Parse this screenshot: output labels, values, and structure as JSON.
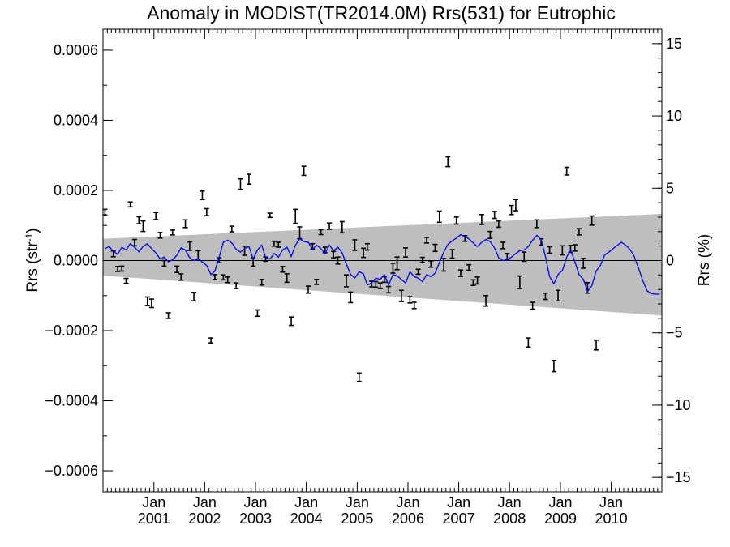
{
  "chart_data": {
    "type": "line",
    "title": "Anomaly in MODIST(TR2014.0M) Rrs(531) for Eutrophic",
    "ylabel_left": {
      "base": "Rrs (str",
      "sup": "-1",
      "close": ")"
    },
    "ylabel_right": "Rrs (%)",
    "xlim": [
      "2000-01-01",
      "2010-12-31"
    ],
    "ylim": [
      -0.00066,
      0.00066
    ],
    "ylim_right": [
      -16.0,
      16.0
    ],
    "yticks": [
      "0.0006",
      "0.0004",
      "0.0002",
      "0.0000",
      "−0.0002",
      "−0.0004",
      "−0.0006"
    ],
    "yticks_right": [
      "15",
      "10",
      "5",
      "0",
      "−5",
      "−10",
      "−15"
    ],
    "xticks": [
      {
        "month": "Jan",
        "year": "2001"
      },
      {
        "month": "Jan",
        "year": "2002"
      },
      {
        "month": "Jan",
        "year": "2003"
      },
      {
        "month": "Jan",
        "year": "2004"
      },
      {
        "month": "Jan",
        "year": "2005"
      },
      {
        "month": "Jan",
        "year": "2006"
      },
      {
        "month": "Jan",
        "year": "2007"
      },
      {
        "month": "Jan",
        "year": "2008"
      },
      {
        "month": "Jan",
        "year": "2009"
      },
      {
        "month": "Jan",
        "year": "2010"
      }
    ],
    "zero_line": true,
    "uncertainty_band": {
      "color": "#bebebe",
      "start": {
        "date": "2000-01-01",
        "upper": 6.2e-05,
        "lower": -4.3e-05
      },
      "end": {
        "date": "2010-12-31",
        "upper": 0.000133,
        "lower": -0.000157
      }
    },
    "error_bars": [
      {
        "date": "2000-01",
        "y": 0.000138,
        "err": 8e-06
      },
      {
        "date": "2000-03",
        "y": 1.9e-05,
        "err": 8e-06
      },
      {
        "date": "2000-04",
        "y": -2.4e-05,
        "err": 7e-06
      },
      {
        "date": "2000-05",
        "y": -2.3e-05,
        "err": 7e-06
      },
      {
        "date": "2000-06",
        "y": -5.8e-05,
        "err": 7e-06
      },
      {
        "date": "2000-07",
        "y": 0.00016,
        "err": 7e-06
      },
      {
        "date": "2000-08",
        "y": 5.1e-05,
        "err": 9e-06
      },
      {
        "date": "2000-09",
        "y": 0.000115,
        "err": 1e-05
      },
      {
        "date": "2000-10",
        "y": 9.8e-05,
        "err": 1.5e-05
      },
      {
        "date": "2000-11",
        "y": -0.000116,
        "err": 1.2e-05
      },
      {
        "date": "2000-12",
        "y": -0.000122,
        "err": 1.2e-05
      },
      {
        "date": "2001-01",
        "y": 0.000127,
        "err": 1e-05
      },
      {
        "date": "2001-02",
        "y": 7.2e-05,
        "err": 8e-06
      },
      {
        "date": "2001-03",
        "y": -8e-06,
        "err": 8e-06
      },
      {
        "date": "2001-04",
        "y": -0.000157,
        "err": 8e-06
      },
      {
        "date": "2001-05",
        "y": 8e-05,
        "err": 7e-06
      },
      {
        "date": "2001-06",
        "y": -2.5e-05,
        "err": 9e-06
      },
      {
        "date": "2001-07",
        "y": -4.7e-05,
        "err": 9e-06
      },
      {
        "date": "2001-08",
        "y": 0.000105,
        "err": 1.1e-05
      },
      {
        "date": "2001-09",
        "y": 4.1e-05,
        "err": 1.2e-05
      },
      {
        "date": "2001-10",
        "y": -0.000103,
        "err": 1.2e-05
      },
      {
        "date": "2001-11",
        "y": 1.6e-05,
        "err": 1.2e-05
      },
      {
        "date": "2001-12",
        "y": 0.000186,
        "err": 1.2e-05
      },
      {
        "date": "2002-01",
        "y": 0.000138,
        "err": 1e-05
      },
      {
        "date": "2002-02",
        "y": -0.000228,
        "err": 7e-06
      },
      {
        "date": "2002-03",
        "y": -4.7e-05,
        "err": 7e-06
      },
      {
        "date": "2002-04",
        "y": 1e-06,
        "err": 7e-06
      },
      {
        "date": "2002-05",
        "y": -4.8e-05,
        "err": 7e-06
      },
      {
        "date": "2002-06",
        "y": -5.5e-05,
        "err": 8e-06
      },
      {
        "date": "2002-07",
        "y": 9e-05,
        "err": 8e-06
      },
      {
        "date": "2002-08",
        "y": -7.2e-05,
        "err": 8e-06
      },
      {
        "date": "2002-09",
        "y": 0.000218,
        "err": 1.5e-05
      },
      {
        "date": "2002-10",
        "y": 2.8e-05,
        "err": 1.3e-05
      },
      {
        "date": "2002-11",
        "y": 0.000232,
        "err": 1.4e-05
      },
      {
        "date": "2002-12",
        "y": -4e-06,
        "err": 1.2e-05
      },
      {
        "date": "2003-01",
        "y": -0.00015,
        "err": 9e-06
      },
      {
        "date": "2003-02",
        "y": -6.2e-05,
        "err": 8e-06
      },
      {
        "date": "2003-03",
        "y": 4e-06,
        "err": 6e-06
      },
      {
        "date": "2003-04",
        "y": 0.000129,
        "err": 6e-06
      },
      {
        "date": "2003-05",
        "y": 4.8e-05,
        "err": 7e-06
      },
      {
        "date": "2003-06",
        "y": 4.5e-05,
        "err": 7e-06
      },
      {
        "date": "2003-07",
        "y": -2.5e-05,
        "err": 8e-06
      },
      {
        "date": "2003-08",
        "y": -5e-05,
        "err": 1.2e-05
      },
      {
        "date": "2003-09",
        "y": -0.000173,
        "err": 1.2e-05
      },
      {
        "date": "2003-10",
        "y": 0.000126,
        "err": 2e-05
      },
      {
        "date": "2003-11",
        "y": 7.9e-05,
        "err": 1.7e-05
      },
      {
        "date": "2003-12",
        "y": 0.000256,
        "err": 1.3e-05
      },
      {
        "date": "2004-01",
        "y": -8.3e-05,
        "err": 1e-05
      },
      {
        "date": "2004-02",
        "y": 4e-05,
        "err": 8e-06
      },
      {
        "date": "2004-03",
        "y": -6.1e-05,
        "err": 7e-06
      },
      {
        "date": "2004-04",
        "y": 8.1e-05,
        "err": 7e-06
      },
      {
        "date": "2004-05",
        "y": 3e-05,
        "err": 8e-06
      },
      {
        "date": "2004-06",
        "y": 9.8e-05,
        "err": 9e-06
      },
      {
        "date": "2004-07",
        "y": 1.7e-05,
        "err": 9e-06
      },
      {
        "date": "2004-08",
        "y": 0.0,
        "err": 1e-05
      },
      {
        "date": "2004-09",
        "y": 9.5e-05,
        "err": 1.6e-05
      },
      {
        "date": "2004-10",
        "y": -5.8e-05,
        "err": 1.7e-05
      },
      {
        "date": "2004-11",
        "y": -0.000105,
        "err": 1.5e-05
      },
      {
        "date": "2004-12",
        "y": 4.4e-05,
        "err": 1.5e-05
      },
      {
        "date": "2005-01",
        "y": -0.000333,
        "err": 1.2e-05
      },
      {
        "date": "2005-02",
        "y": 2.2e-05,
        "err": 1.3e-05
      },
      {
        "date": "2005-03",
        "y": 3.9e-05,
        "err": 9e-06
      },
      {
        "date": "2005-04",
        "y": -6.7e-05,
        "err": 8e-06
      },
      {
        "date": "2005-05",
        "y": -6.8e-05,
        "err": 8e-06
      },
      {
        "date": "2005-06",
        "y": -7.2e-05,
        "err": 8e-06
      },
      {
        "date": "2005-07",
        "y": -5.4e-05,
        "err": 8e-06
      },
      {
        "date": "2005-08",
        "y": -8.3e-05,
        "err": 9e-06
      },
      {
        "date": "2005-09",
        "y": -2.2e-05,
        "err": 1.4e-05
      },
      {
        "date": "2005-10",
        "y": -8e-06,
        "err": 1.8e-05
      },
      {
        "date": "2005-11",
        "y": -0.000101,
        "err": 1.6e-05
      },
      {
        "date": "2005-12",
        "y": 2.3e-05,
        "err": 1.3e-05
      },
      {
        "date": "2006-01",
        "y": -0.000112,
        "err": 9e-06
      },
      {
        "date": "2006-02",
        "y": -0.000128,
        "err": 9e-06
      },
      {
        "date": "2006-03",
        "y": -3.2e-05,
        "err": 7e-06
      },
      {
        "date": "2006-04",
        "y": 2e-06,
        "err": 7e-06
      },
      {
        "date": "2006-05",
        "y": 5.8e-05,
        "err": 8e-06
      },
      {
        "date": "2006-06",
        "y": -1e-05,
        "err": 9e-06
      },
      {
        "date": "2006-07",
        "y": 3.6e-05,
        "err": 1e-05
      },
      {
        "date": "2006-08",
        "y": 0.000125,
        "err": 1.6e-05
      },
      {
        "date": "2006-09",
        "y": -1.2e-05,
        "err": 1.8e-05
      },
      {
        "date": "2006-10",
        "y": 0.000282,
        "err": 1.4e-05
      },
      {
        "date": "2006-11",
        "y": 1.9e-05,
        "err": 1.2e-05
      },
      {
        "date": "2006-12",
        "y": 0.000114,
        "err": 1e-05
      },
      {
        "date": "2007-01",
        "y": -3.6e-05,
        "err": 9e-06
      },
      {
        "date": "2007-02",
        "y": 6.3e-05,
        "err": 8e-06
      },
      {
        "date": "2007-03",
        "y": -2e-05,
        "err": 8e-06
      },
      {
        "date": "2007-04",
        "y": -6.3e-05,
        "err": 8e-06
      },
      {
        "date": "2007-05",
        "y": -5.7e-05,
        "err": 1e-05
      },
      {
        "date": "2007-06",
        "y": 0.000117,
        "err": 1.4e-05
      },
      {
        "date": "2007-07",
        "y": -0.000115,
        "err": 1.5e-05
      },
      {
        "date": "2007-08",
        "y": 7.3e-05,
        "err": 1e-05
      },
      {
        "date": "2007-09",
        "y": 0.00013,
        "err": 1e-05
      },
      {
        "date": "2007-10",
        "y": 0.000104,
        "err": 9e-06
      },
      {
        "date": "2007-11",
        "y": 4.3e-05,
        "err": 9e-06
      },
      {
        "date": "2007-12",
        "y": 1.1e-05,
        "err": 9e-06
      },
      {
        "date": "2008-01",
        "y": 0.000144,
        "err": 1.3e-05
      },
      {
        "date": "2008-02",
        "y": 0.000158,
        "err": 1.6e-05
      },
      {
        "date": "2008-03",
        "y": -6.2e-05,
        "err": 1.8e-05
      },
      {
        "date": "2008-04",
        "y": 1.1e-05,
        "err": 1.3e-05
      },
      {
        "date": "2008-05",
        "y": -0.000234,
        "err": 1.3e-05
      },
      {
        "date": "2008-06",
        "y": -0.000129,
        "err": 1e-05
      },
      {
        "date": "2008-07",
        "y": 0.000105,
        "err": 1.1e-05
      },
      {
        "date": "2008-08",
        "y": 5.3e-05,
        "err": 9e-06
      },
      {
        "date": "2008-09",
        "y": -0.000102,
        "err": 9e-06
      },
      {
        "date": "2008-10",
        "y": 3e-05,
        "err": 9e-06
      },
      {
        "date": "2008-11",
        "y": -0.000301,
        "err": 1.6e-05
      },
      {
        "date": "2008-12",
        "y": -0.0001,
        "err": 1.5e-05
      },
      {
        "date": "2009-01",
        "y": 2.9e-05,
        "err": 1.3e-05
      },
      {
        "date": "2009-02",
        "y": 0.000255,
        "err": 1.1e-05
      },
      {
        "date": "2009-03",
        "y": 3.3e-05,
        "err": 1e-05
      },
      {
        "date": "2009-04",
        "y": 3.6e-05,
        "err": 9e-06
      },
      {
        "date": "2009-05",
        "y": 8.2e-05,
        "err": 9e-06
      },
      {
        "date": "2009-06",
        "y": -8e-06,
        "err": 1.4e-05
      },
      {
        "date": "2009-07",
        "y": -7.8e-05,
        "err": 1.5e-05
      },
      {
        "date": "2009-08",
        "y": 0.000114,
        "err": 1.3e-05
      },
      {
        "date": "2009-09",
        "y": -0.000241,
        "err": 1.4e-05
      }
    ],
    "series": [
      {
        "color": "#0000ff",
        "x": [
          "2000-01",
          "2000-02",
          "2000-03",
          "2000-04",
          "2000-05",
          "2000-06",
          "2000-07",
          "2000-08",
          "2000-09",
          "2000-10",
          "2000-11",
          "2000-12",
          "2001-01",
          "2001-02",
          "2001-03",
          "2001-04",
          "2001-05",
          "2001-06",
          "2001-07",
          "2001-08",
          "2001-09",
          "2001-10",
          "2001-11",
          "2001-12",
          "2002-01",
          "2002-02",
          "2002-03",
          "2002-04",
          "2002-05",
          "2002-06",
          "2002-07",
          "2002-08",
          "2002-09",
          "2002-10",
          "2002-11",
          "2002-12",
          "2003-01",
          "2003-02",
          "2003-03",
          "2003-04",
          "2003-05",
          "2003-06",
          "2003-07",
          "2003-08",
          "2003-09",
          "2003-10",
          "2003-11",
          "2003-12",
          "2004-01",
          "2004-02",
          "2004-03",
          "2004-04",
          "2004-05",
          "2004-06",
          "2004-07",
          "2004-08",
          "2004-09",
          "2004-10",
          "2004-11",
          "2004-12",
          "2005-01",
          "2005-02",
          "2005-03",
          "2005-04",
          "2005-05",
          "2005-06",
          "2005-07",
          "2005-08",
          "2005-09",
          "2005-10",
          "2005-11",
          "2005-12",
          "2006-01",
          "2006-02",
          "2006-03",
          "2006-04",
          "2006-05",
          "2006-06",
          "2006-07",
          "2006-08",
          "2006-09",
          "2006-10",
          "2006-11",
          "2006-12",
          "2007-01",
          "2007-02",
          "2007-03",
          "2007-04",
          "2007-05",
          "2007-06",
          "2007-07",
          "2007-08",
          "2007-09",
          "2007-10",
          "2007-11",
          "2007-12",
          "2008-01",
          "2008-02",
          "2008-03",
          "2008-04",
          "2008-05",
          "2008-06",
          "2008-07",
          "2008-08",
          "2008-09",
          "2008-10",
          "2008-11",
          "2008-12",
          "2009-01",
          "2009-02",
          "2009-03",
          "2009-04",
          "2009-05",
          "2009-06",
          "2009-07",
          "2009-08",
          "2009-09",
          "2009-10",
          "2009-11",
          "2009-12",
          "2010-01",
          "2010-02",
          "2010-03",
          "2010-04",
          "2010-05",
          "2010-06",
          "2010-07",
          "2010-08",
          "2010-09",
          "2010-10",
          "2010-11",
          "2010-12"
        ],
        "values": [
          3.4e-05,
          4e-05,
          2.6e-05,
          1.8e-05,
          3.8e-05,
          3e-05,
          4.8e-05,
          3.8e-05,
          2.5e-05,
          4e-05,
          4.8e-05,
          3.4e-05,
          2.2e-05,
          4e-06,
          1e-05,
          -4e-06,
          2e-06,
          1.5e-05,
          3.6e-05,
          3e-05,
          8e-06,
          0.0,
          4e-06,
          -4e-06,
          -1.4e-05,
          -4e-05,
          -3e-05,
          1e-05,
          5.2e-05,
          5.8e-05,
          5e-05,
          3.2e-05,
          2.4e-05,
          3.4e-05,
          4e-05,
          4e-06,
          3e-05,
          4.4e-05,
          8e-06,
          4e-06,
          2e-05,
          1e-05,
          3e-05,
          3.8e-05,
          1.2e-05,
          4.4e-05,
          6.2e-05,
          5.4e-05,
          5.2e-05,
          3.2e-05,
          4.4e-05,
          3.4e-05,
          2e-05,
          4.4e-05,
          2.8e-05,
          3.8e-05,
          2.2e-05,
          -1e-05,
          -4e-05,
          -5e-05,
          -3.2e-05,
          -3.8e-05,
          -7e-05,
          -6.4e-05,
          -5e-05,
          -5.4e-05,
          -4e-05,
          -7e-05,
          -4e-05,
          -4.4e-05,
          -5.4e-05,
          -6.4e-05,
          -3.2e-05,
          -4.6e-05,
          -5e-05,
          -6e-05,
          -4e-05,
          -4.6e-05,
          -3.6e-05,
          -6e-06,
          2.4e-05,
          4.6e-05,
          5.6e-05,
          6.4e-05,
          7.4e-05,
          6.8e-05,
          6.2e-05,
          5e-05,
          4e-05,
          5.2e-05,
          6e-05,
          5.4e-05,
          3.6e-05,
          8e-06,
          0.0,
          2e-06,
          1e-05,
          2e-05,
          2.8e-05,
          3e-05,
          4e-05,
          5.8e-05,
          7.2e-05,
          6e-05,
          1.2e-05,
          -4.6e-05,
          -6.6e-05,
          -4e-05,
          -2.8e-05,
          1e-05,
          3e-05,
          -4e-06,
          -4e-05,
          -5.4e-05,
          -8.8e-05,
          -7.2e-05,
          -3e-05,
          -1.4e-05,
          1.6e-05,
          2.4e-05,
          3.4e-05,
          4.4e-05,
          5.2e-05,
          4.4e-05,
          3.2e-05,
          1.2e-05,
          -2e-05,
          -5.6e-05,
          -8.6e-05,
          -9.4e-05,
          -9.6e-05,
          -9.6e-05
        ]
      }
    ]
  }
}
